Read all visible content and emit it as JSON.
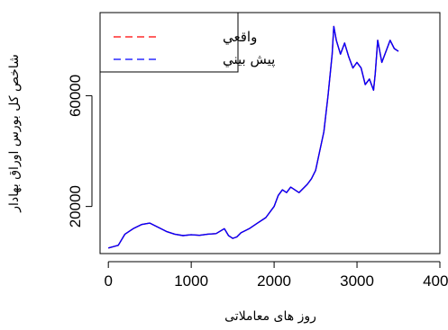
{
  "chart_data": {
    "type": "line",
    "xlabel": "روز های معاملاتی",
    "ylabel": "شاخص کل بورس اوراق بهادار",
    "xlim": [
      -100,
      4000
    ],
    "ylim": [
      3000,
      90000
    ],
    "x_ticks": [
      0,
      1000,
      2000,
      3000,
      4000
    ],
    "y_ticks": [
      20000,
      60000
    ],
    "legend_position": "top-left",
    "series": [
      {
        "name": "واقعي",
        "color": "#ff0000",
        "dash": "dashed",
        "x": [
          0,
          120,
          200,
          300,
          400,
          500,
          600,
          700,
          800,
          900,
          1000,
          1100,
          1200,
          1300,
          1400,
          1450,
          1500,
          1550,
          1600,
          1700,
          1800,
          1900,
          2000,
          2050,
          2100,
          2150,
          2200,
          2300,
          2400,
          2450,
          2500,
          2550,
          2600,
          2650,
          2700,
          2720,
          2750,
          2800,
          2850,
          2900,
          2950,
          3000,
          3050,
          3100,
          3150,
          3200,
          3220,
          3250,
          3300,
          3350,
          3400,
          3450,
          3500
        ],
        "values": [
          5000,
          6000,
          10000,
          12000,
          13500,
          14000,
          12500,
          11000,
          10000,
          9500,
          9800,
          9600,
          10000,
          10200,
          12000,
          9500,
          8500,
          9000,
          10500,
          12000,
          14000,
          16000,
          20000,
          24000,
          26000,
          25000,
          27000,
          25000,
          28000,
          30000,
          33000,
          40000,
          47000,
          60000,
          75000,
          85000,
          80000,
          75000,
          79000,
          74000,
          70000,
          72000,
          70000,
          64000,
          66000,
          62000,
          68000,
          80000,
          72000,
          76000,
          80000,
          77000,
          76000
        ]
      },
      {
        "name": "پيش بيني",
        "color": "#0000ff",
        "dash": "dashed",
        "x": [
          0,
          120,
          200,
          300,
          400,
          500,
          600,
          700,
          800,
          900,
          1000,
          1100,
          1200,
          1300,
          1400,
          1450,
          1500,
          1550,
          1600,
          1700,
          1800,
          1900,
          2000,
          2050,
          2100,
          2150,
          2200,
          2300,
          2400,
          2450,
          2500,
          2550,
          2600,
          2650,
          2700,
          2720,
          2750,
          2800,
          2850,
          2900,
          2950,
          3000,
          3050,
          3100,
          3150,
          3200,
          3220,
          3250,
          3300,
          3350,
          3400,
          3450,
          3500
        ],
        "values": [
          5000,
          6000,
          10000,
          12000,
          13500,
          14000,
          12500,
          11000,
          10000,
          9500,
          9800,
          9600,
          10000,
          10200,
          12000,
          9500,
          8500,
          9000,
          10500,
          12000,
          14000,
          16000,
          20000,
          24000,
          26000,
          25000,
          27000,
          25000,
          28000,
          30000,
          33000,
          40000,
          47000,
          60000,
          75000,
          85000,
          80000,
          75000,
          79000,
          74000,
          70000,
          72000,
          70000,
          64000,
          66000,
          62000,
          68000,
          80000,
          72000,
          76000,
          80000,
          77000,
          76000
        ]
      }
    ]
  }
}
